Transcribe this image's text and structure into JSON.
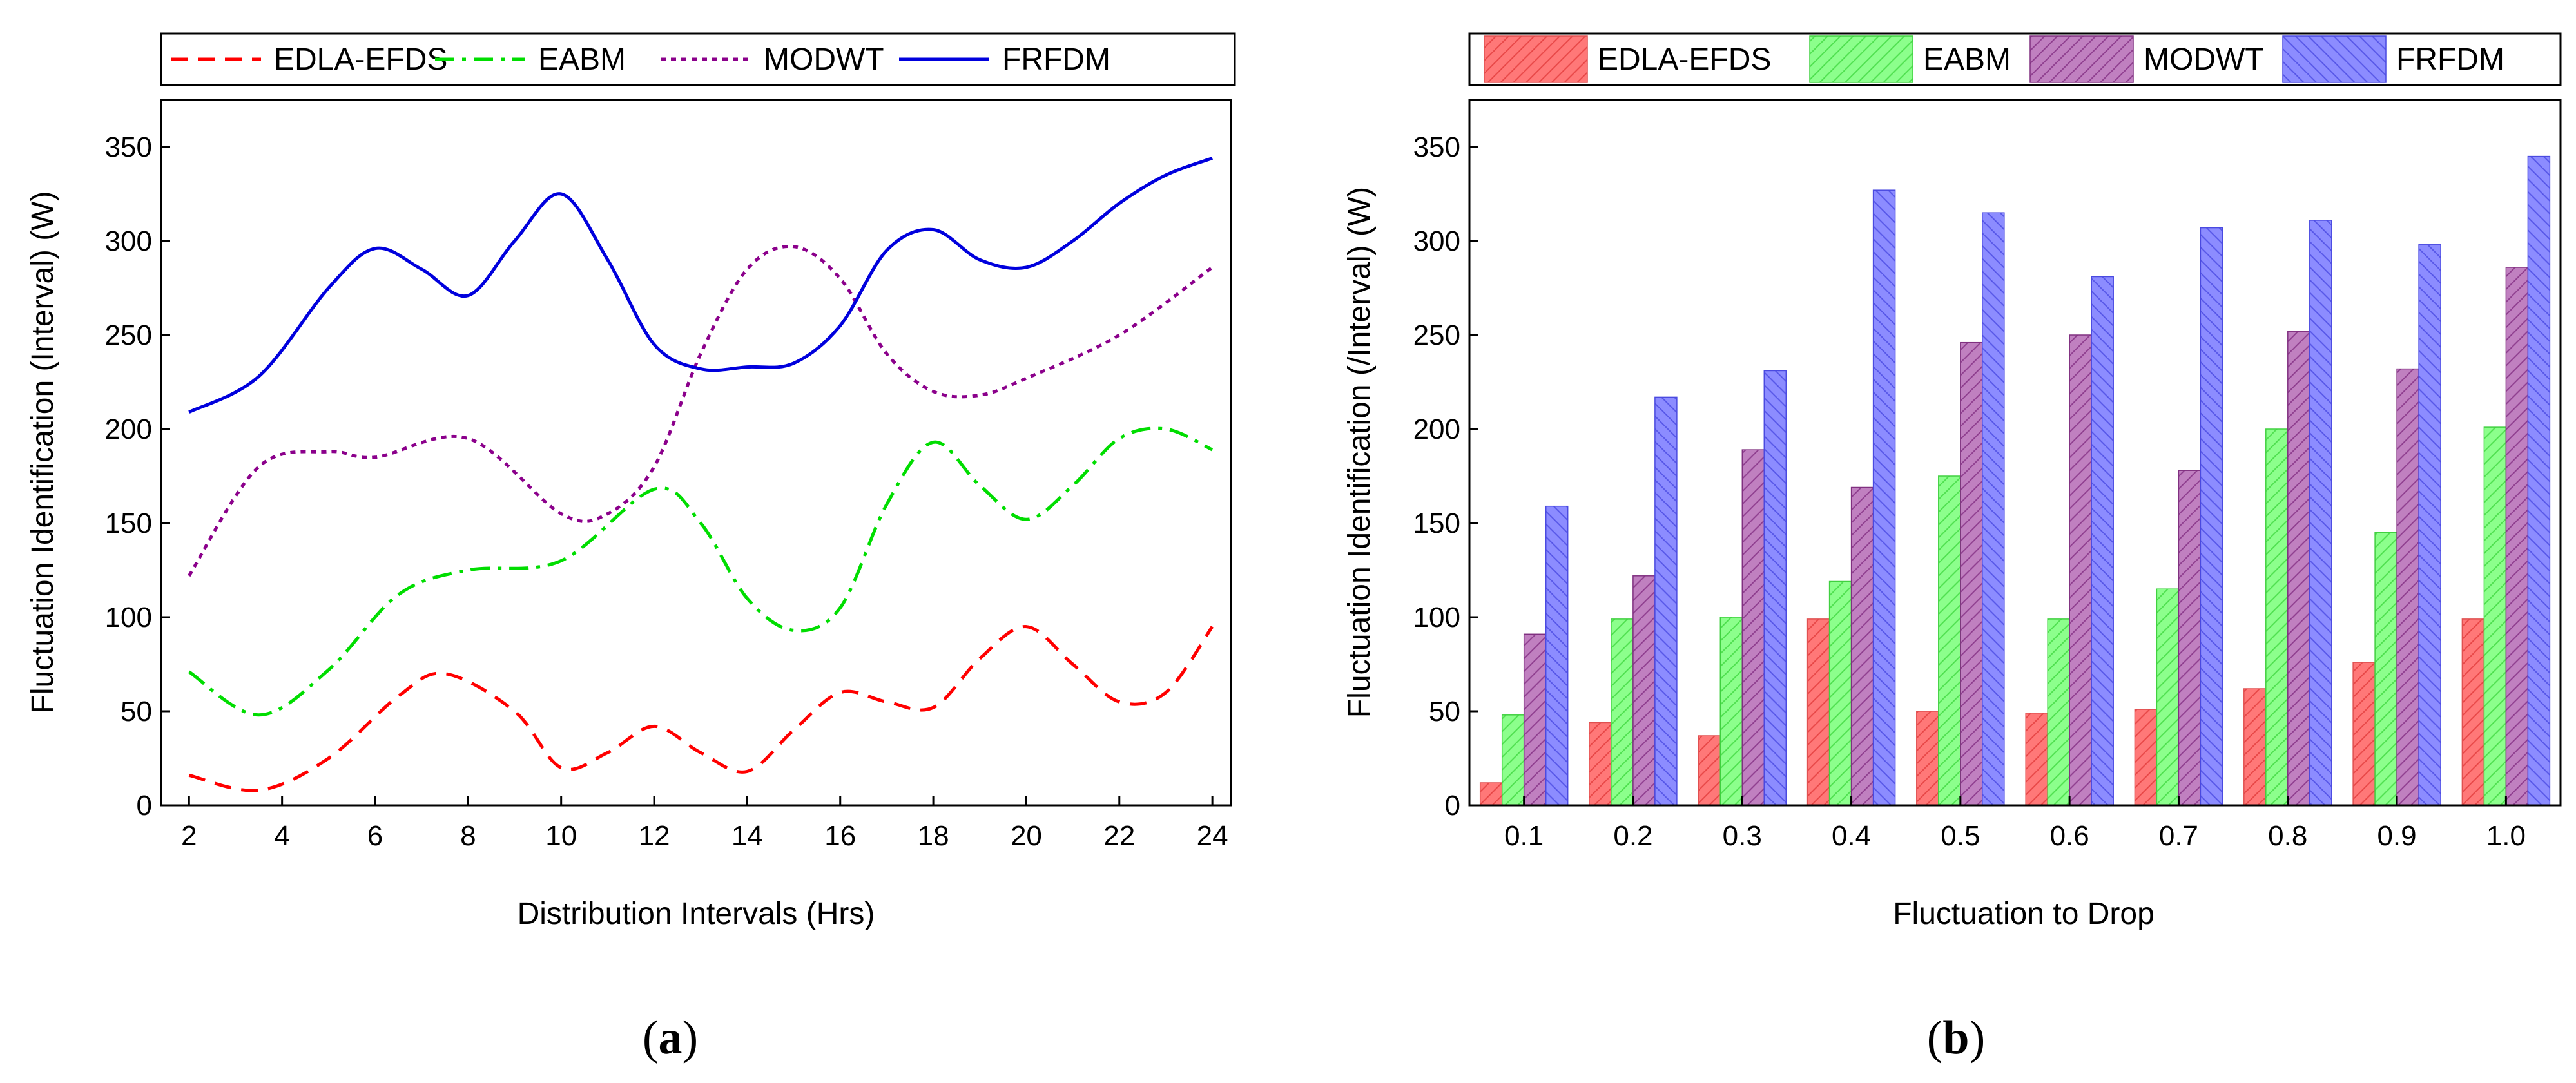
{
  "chart_data": [
    {
      "type": "line",
      "panel": "a",
      "xlabel": "Distribution Intervals (Hrs)",
      "ylabel": "Fluctuation Identification (Interval) (W)",
      "xlim": [
        1.4,
        24.4
      ],
      "ylim": [
        0,
        375
      ],
      "x_ticks": [
        2,
        4,
        6,
        8,
        10,
        12,
        14,
        16,
        18,
        20,
        22,
        24
      ],
      "y_ticks": [
        0,
        50,
        100,
        150,
        200,
        250,
        300,
        350
      ],
      "grid": false,
      "legend_position": "top",
      "series": [
        {
          "name": "EDLA-EFDS",
          "style": "dashed",
          "color": "#ff0000",
          "x": [
            2,
            3.5,
            5,
            6.5,
            7.5,
            9,
            10,
            11,
            12,
            13,
            14,
            15,
            16,
            17,
            18,
            19,
            20,
            21,
            22,
            23,
            24
          ],
          "y": [
            16,
            8,
            25,
            58,
            70,
            50,
            20,
            28,
            42,
            28,
            18,
            40,
            60,
            55,
            52,
            78,
            95,
            75,
            55,
            60,
            95
          ]
        },
        {
          "name": "EABM",
          "style": "dashdot",
          "color": "#00dd00",
          "x": [
            2,
            3.5,
            5,
            6.5,
            8,
            10,
            12,
            13,
            14,
            15,
            16,
            17,
            18,
            19,
            20,
            21,
            22,
            23,
            24
          ],
          "y": [
            71,
            48,
            72,
            112,
            125,
            130,
            168,
            150,
            110,
            93,
            105,
            160,
            193,
            170,
            152,
            170,
            195,
            200,
            189
          ]
        },
        {
          "name": "MODWT",
          "style": "dotted",
          "color": "#8b008b",
          "x": [
            2,
            3.5,
            5,
            6,
            8,
            10,
            11,
            12,
            13,
            14,
            15,
            16,
            17,
            18,
            19,
            20,
            22,
            24
          ],
          "y": [
            122,
            180,
            188,
            185,
            195,
            155,
            155,
            180,
            240,
            285,
            297,
            280,
            240,
            220,
            218,
            227,
            250,
            286
          ]
        },
        {
          "name": "FRFDM",
          "style": "solid",
          "color": "#0000dd",
          "x": [
            2,
            3.5,
            5,
            6,
            7,
            8,
            9,
            10,
            11,
            12,
            13,
            14,
            15,
            16,
            17,
            18,
            19,
            20,
            21,
            22,
            23,
            24
          ],
          "y": [
            209,
            228,
            275,
            296,
            285,
            271,
            300,
            325,
            290,
            245,
            232,
            233,
            235,
            255,
            295,
            306,
            290,
            286,
            300,
            320,
            335,
            344
          ]
        }
      ]
    },
    {
      "type": "bar",
      "panel": "b",
      "xlabel": "Fluctuation to Drop",
      "ylabel": "Fluctuation Identification (/Interval) (W)",
      "categories": [
        "0.1",
        "0.2",
        "0.3",
        "0.4",
        "0.5",
        "0.6",
        "0.7",
        "0.8",
        "0.9",
        "1.0"
      ],
      "ylim": [
        0,
        375
      ],
      "y_ticks": [
        0,
        50,
        100,
        150,
        200,
        250,
        300,
        350
      ],
      "grid": false,
      "legend_position": "top",
      "series": [
        {
          "name": "EDLA-EFDS",
          "color": "#ff7070",
          "values": [
            12,
            44,
            37,
            99,
            50,
            49,
            51,
            62,
            76,
            99
          ]
        },
        {
          "name": "EABM",
          "color": "#80ff80",
          "values": [
            48,
            99,
            100,
            119,
            175,
            99,
            115,
            200,
            145,
            201
          ]
        },
        {
          "name": "MODWT",
          "color": "#b060b0",
          "values": [
            91,
            122,
            189,
            169,
            246,
            250,
            178,
            252,
            232,
            286
          ]
        },
        {
          "name": "FRFDM",
          "color": "#8080ff",
          "values": [
            159,
            217,
            231,
            327,
            315,
            281,
            307,
            311,
            298,
            345
          ]
        }
      ]
    }
  ],
  "panel_labels": {
    "a": {
      "open": "(",
      "letter": "a",
      "close": ")"
    },
    "b": {
      "open": "(",
      "letter": "b",
      "close": ")"
    }
  }
}
